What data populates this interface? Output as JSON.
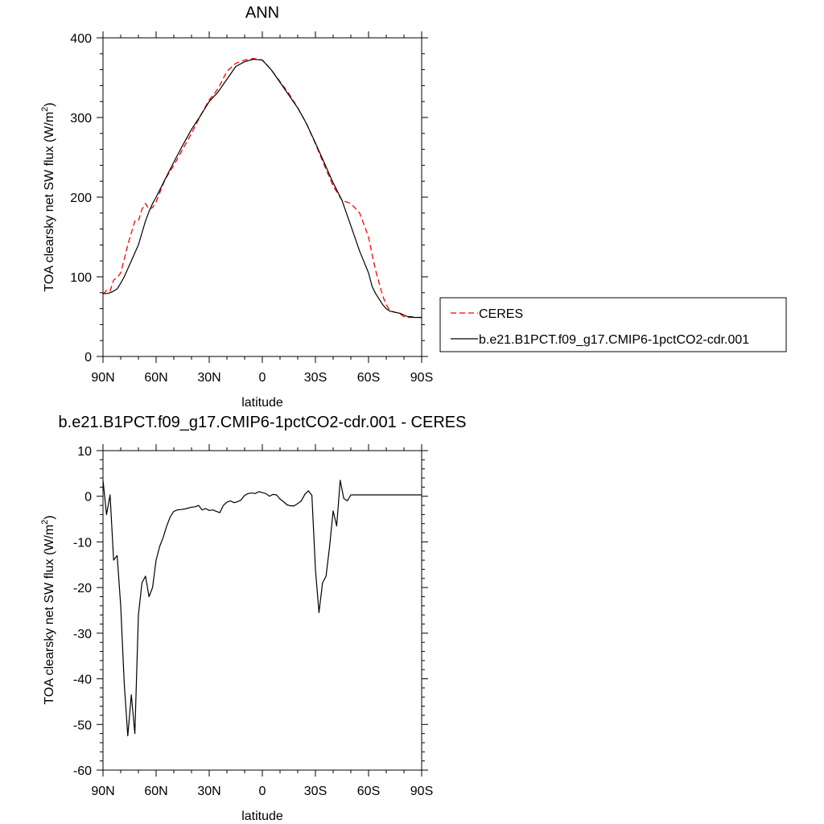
{
  "chart_data": [
    {
      "type": "line",
      "title": "ANN",
      "xlabel": "latitude",
      "ylabel": "TOA clearsky net SW flux (W/m",
      "ylabel_sup": "2",
      "ylabel_tail": ")",
      "xlim": [
        90,
        -90
      ],
      "ylim": [
        0,
        400
      ],
      "xticks": [
        90,
        60,
        30,
        0,
        -30,
        -60,
        -90
      ],
      "xtick_labels": [
        "90N",
        "60N",
        "30N",
        "0",
        "30S",
        "60S",
        "90S"
      ],
      "yticks": [
        0,
        100,
        200,
        300,
        400
      ],
      "ytick_labels": [
        "0",
        "100",
        "200",
        "300",
        "400"
      ],
      "grid": false,
      "legend": "right",
      "series": [
        {
          "name": "CERES",
          "color": "#ff0000",
          "dash": true,
          "x": [
            90,
            88,
            86,
            84,
            82,
            80,
            78,
            76,
            74,
            72,
            70,
            68,
            66,
            64,
            62,
            60,
            55,
            50,
            45,
            40,
            35,
            30,
            25,
            20,
            15,
            10,
            5,
            0,
            -5,
            -10,
            -15,
            -20,
            -25,
            -30,
            -35,
            -40,
            -45,
            -50,
            -55,
            -60,
            -62,
            -64,
            -66,
            -68,
            -70,
            -72,
            -74,
            -76,
            -78,
            -80,
            -82,
            -84,
            -86,
            -88,
            -90
          ],
          "values": [
            78,
            83,
            82,
            96,
            99,
            105,
            122,
            140,
            155,
            170,
            170,
            185,
            192,
            185,
            187,
            194,
            222,
            240,
            260,
            280,
            302,
            322,
            336,
            358,
            368,
            372,
            374,
            372,
            360,
            345,
            330,
            312,
            292,
            267,
            240,
            214,
            196,
            192,
            180,
            150,
            128,
            108,
            92,
            76,
            65,
            58,
            56,
            55,
            53,
            50,
            49,
            49,
            49,
            49,
            49
          ]
        },
        {
          "name": "b.e21.B1PCT.f09_g17.CMIP6-1pctCO2-cdr.001",
          "color": "#000000",
          "dash": false,
          "x": [
            90,
            88,
            86,
            84,
            82,
            80,
            78,
            76,
            74,
            72,
            70,
            68,
            66,
            64,
            62,
            60,
            55,
            50,
            45,
            40,
            35,
            30,
            25,
            20,
            15,
            10,
            5,
            0,
            -5,
            -10,
            -15,
            -20,
            -25,
            -30,
            -35,
            -40,
            -45,
            -50,
            -55,
            -60,
            -62,
            -64,
            -66,
            -68,
            -70,
            -72,
            -74,
            -76,
            -78,
            -80,
            -82,
            -84,
            -86,
            -88,
            -90
          ],
          "values": [
            79,
            79,
            80,
            82,
            85,
            92,
            100,
            110,
            120,
            130,
            140,
            155,
            170,
            182,
            192,
            200,
            222,
            244,
            265,
            285,
            302,
            320,
            332,
            348,
            364,
            370,
            373,
            372,
            360,
            344,
            328,
            312,
            292,
            268,
            243,
            218,
            196,
            164,
            132,
            105,
            88,
            79,
            72,
            65,
            60,
            57,
            56,
            55,
            54,
            52,
            50,
            50,
            49,
            49,
            49
          ]
        }
      ]
    },
    {
      "type": "line",
      "title": "b.e21.B1PCT.f09_g17.CMIP6-1pctCO2-cdr.001 - CERES",
      "xlabel": "latitude",
      "ylabel": "TOA clearsky net SW flux (W/m",
      "ylabel_sup": "2",
      "ylabel_tail": ")",
      "xlim": [
        90,
        -90
      ],
      "ylim": [
        -60,
        10
      ],
      "xticks": [
        90,
        60,
        30,
        0,
        -30,
        -60,
        -90
      ],
      "xtick_labels": [
        "90N",
        "60N",
        "30N",
        "0",
        "30S",
        "60S",
        "90S"
      ],
      "yticks": [
        -60,
        -50,
        -40,
        -30,
        -20,
        -10,
        0,
        10
      ],
      "ytick_labels": [
        "-60",
        "-50",
        "-40",
        "-30",
        "-20",
        "-10",
        "0",
        "10"
      ],
      "grid": false,
      "series": [
        {
          "color": "#000000",
          "dash": false,
          "x": [
            90,
            88,
            86,
            84,
            82,
            80,
            78,
            76,
            74,
            72,
            70,
            68,
            66,
            64,
            62,
            60,
            58,
            56,
            54,
            52,
            50,
            48,
            46,
            44,
            42,
            40,
            38,
            36,
            34,
            32,
            30,
            28,
            26,
            24,
            22,
            20,
            18,
            16,
            14,
            12,
            10,
            8,
            6,
            4,
            2,
            0,
            -2,
            -4,
            -6,
            -8,
            -10,
            -12,
            -14,
            -16,
            -18,
            -20,
            -22,
            -24,
            -26,
            -28,
            -30,
            -32,
            -34,
            -36,
            -38,
            -40,
            -42,
            -44,
            -46,
            -48,
            -50,
            -52,
            -54,
            -56,
            -58,
            -60,
            -62,
            -64,
            -66,
            -68,
            -70,
            -72,
            -74,
            -76,
            -78,
            -80,
            -82,
            -84,
            -86,
            -88,
            -90
          ],
          "values": [
            3.5,
            -4,
            0.3,
            -14,
            -13,
            -24,
            -41,
            -52.5,
            -43.5,
            -52,
            -26,
            -19,
            -17.5,
            -22,
            -20,
            -14,
            -11,
            -9,
            -6.5,
            -4.5,
            -3.3,
            -3.0,
            -2.9,
            -2.8,
            -2.6,
            -2.4,
            -2.3,
            -2.0,
            -3.0,
            -2.7,
            -3.1,
            -3.0,
            -3.3,
            -3.6,
            -2.0,
            -1.3,
            -1.0,
            -1.4,
            -1.2,
            -0.8,
            0.2,
            0.6,
            0.7,
            0.6,
            1.0,
            0.8,
            0.6,
            0.0,
            0.4,
            0.3,
            -0.6,
            -1.2,
            -1.9,
            -2.1,
            -2.1,
            -1.6,
            -1.0,
            0.4,
            1.2,
            0.2,
            -16,
            -25.5,
            -19,
            -17.5,
            -11,
            -3.2,
            -6.5,
            3.5,
            -0.5,
            -1.0,
            0.3,
            0.3,
            0.3,
            0.3,
            0.3,
            0.3,
            0.3,
            0.3,
            0.3,
            0.3,
            0.3,
            0.3,
            0.3,
            0.3,
            0.3,
            0.3,
            0.3,
            0.3,
            0.3,
            0.3,
            0.3
          ]
        }
      ]
    }
  ]
}
